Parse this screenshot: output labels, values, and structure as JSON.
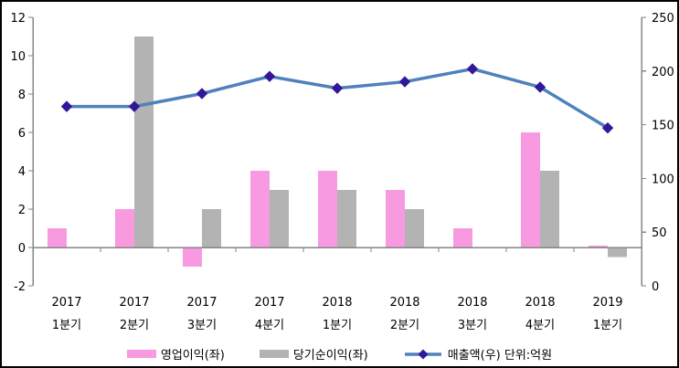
{
  "chart_data": {
    "type": "combo-bar-line",
    "title": "",
    "categories": [
      {
        "year": "2017",
        "quarter": "1분기"
      },
      {
        "year": "2017",
        "quarter": "2분기"
      },
      {
        "year": "2017",
        "quarter": "3분기"
      },
      {
        "year": "2017",
        "quarter": "4분기"
      },
      {
        "year": "2018",
        "quarter": "1분기"
      },
      {
        "year": "2018",
        "quarter": "2분기"
      },
      {
        "year": "2018",
        "quarter": "3분기"
      },
      {
        "year": "2018",
        "quarter": "4분기"
      },
      {
        "year": "2019",
        "quarter": "1분기"
      }
    ],
    "series": [
      {
        "name": "영업이익(좌)",
        "type": "bar",
        "axis": "left",
        "color": "#f79ae0",
        "values": [
          1,
          2,
          -1,
          4,
          4,
          3,
          1,
          6,
          0.1
        ]
      },
      {
        "name": "당기순이익(좌)",
        "type": "bar",
        "axis": "left",
        "color": "#b3b3b3",
        "values": [
          0,
          11,
          2,
          3,
          3,
          2,
          0,
          4,
          -0.5
        ]
      },
      {
        "name": "매출액(우) 단위:억원",
        "type": "line",
        "axis": "right",
        "color": "#4f81bd",
        "marker_color": "#31189b",
        "values": [
          167,
          167,
          179,
          195,
          184,
          190,
          202,
          185,
          147
        ]
      }
    ],
    "left_axis": {
      "min": -2,
      "max": 12,
      "ticks": [
        12,
        10,
        8,
        6,
        4,
        2,
        0,
        -2
      ]
    },
    "right_axis": {
      "min": 0,
      "max": 250,
      "ticks": [
        250,
        200,
        150,
        100,
        50,
        0
      ]
    },
    "axis_color": "#868686",
    "text_color": "#000000",
    "grid": false,
    "legend_position": "bottom"
  }
}
